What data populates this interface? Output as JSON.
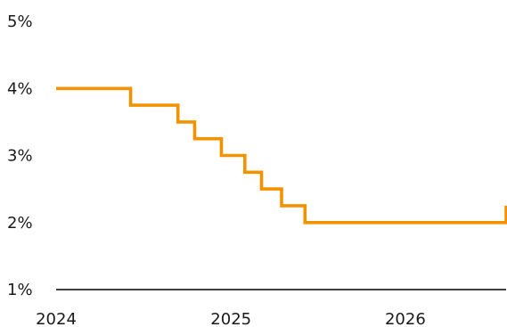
{
  "chart_data": {
    "type": "line",
    "line_style": "step",
    "title": "",
    "xlabel": "",
    "ylabel": "",
    "ylim": [
      1,
      5
    ],
    "y_ticks": [
      {
        "value": 1,
        "label": "1%"
      },
      {
        "value": 2,
        "label": "2%"
      },
      {
        "value": 3,
        "label": "3%"
      },
      {
        "value": 4,
        "label": "4%"
      },
      {
        "value": 5,
        "label": "5%"
      }
    ],
    "x_ticks": [
      {
        "value": "2024-01-01",
        "label": "2024"
      },
      {
        "value": "2025-01-01",
        "label": "2025"
      },
      {
        "value": "2026-01-01",
        "label": "2026"
      }
    ],
    "xlim": [
      "2024-01-01",
      "2026-07-31"
    ],
    "grid": false,
    "legend": "none",
    "series": [
      {
        "color": "#f39200",
        "points": [
          {
            "x": "2024-01-01",
            "y": 4.0
          },
          {
            "x": "2024-06-05",
            "y": 3.75
          },
          {
            "x": "2024-09-12",
            "y": 3.5
          },
          {
            "x": "2024-10-17",
            "y": 3.25
          },
          {
            "x": "2024-12-12",
            "y": 3.0
          },
          {
            "x": "2025-01-30",
            "y": 2.75
          },
          {
            "x": "2025-03-06",
            "y": 2.5
          },
          {
            "x": "2025-04-17",
            "y": 2.25
          },
          {
            "x": "2025-06-05",
            "y": 2.0
          },
          {
            "x": "2026-07-31",
            "y": 2.25
          }
        ]
      }
    ]
  }
}
